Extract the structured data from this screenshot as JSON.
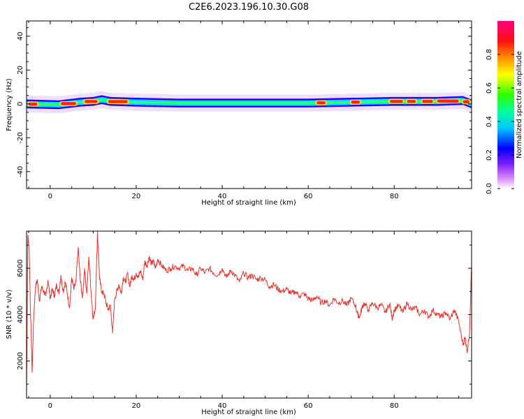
{
  "title": "C2E6.2023.196.10.30.G08",
  "chart_data": [
    {
      "type": "heatmap",
      "xlabel": "Height of straight line (km)",
      "ylabel": "Frequency (Hz)",
      "xlim": [
        -5.5,
        98
      ],
      "ylim": [
        -50,
        49
      ],
      "xticks": [
        0,
        20,
        40,
        60,
        80
      ],
      "xtick_labels": [
        "0",
        "20",
        "40",
        "60",
        "80"
      ],
      "yticks": [
        -40,
        -20,
        0,
        20,
        40
      ],
      "ytick_labels": [
        "-40",
        "-20",
        "0",
        "20",
        "40"
      ],
      "colorbar": {
        "label": "Normalized spectral amplitude",
        "range": [
          0,
          1
        ],
        "ticks": [
          0.0,
          0.2,
          0.4,
          0.6,
          0.8
        ],
        "tick_labels": [
          "0.0",
          "0.2",
          "0.4",
          "0.6",
          "0.8"
        ],
        "colormap": "hsv-reversed (magenta at 1, red, yellow, green, cyan, blue, violet, white at 0)"
      },
      "ridge_frequency_hz": [
        [
          -5.5,
          0
        ],
        [
          2,
          -0.5
        ],
        [
          7,
          1
        ],
        [
          10,
          1.5
        ],
        [
          12,
          2.5
        ],
        [
          14,
          1.5
        ],
        [
          20,
          1
        ],
        [
          30,
          0.5
        ],
        [
          40,
          0.5
        ],
        [
          50,
          0.5
        ],
        [
          60,
          0.5
        ],
        [
          70,
          1
        ],
        [
          80,
          1.5
        ],
        [
          90,
          1.5
        ],
        [
          96,
          2
        ],
        [
          98,
          0
        ]
      ],
      "ridge_peak_segments_km": [
        [
          -5,
          -3
        ],
        [
          2.5,
          6
        ],
        [
          8,
          11
        ],
        [
          13.5,
          18
        ],
        [
          62,
          64
        ],
        [
          70,
          72
        ],
        [
          79,
          82
        ],
        [
          83,
          85
        ],
        [
          86.5,
          89
        ],
        [
          90,
          95
        ],
        [
          96,
          97.5
        ]
      ],
      "grid": false
    },
    {
      "type": "line",
      "xlabel": "Height of straight line (km)",
      "ylabel": "SNR (10 * v/v)",
      "xlim": [
        -5.5,
        98
      ],
      "ylim": [
        400,
        7600
      ],
      "xticks": [
        0,
        20,
        40,
        60,
        80
      ],
      "xtick_labels": [
        "0",
        "20",
        "40",
        "60",
        "80"
      ],
      "yticks": [
        2000,
        4000,
        6000
      ],
      "ytick_labels": [
        "2000",
        "4000",
        "6000"
      ],
      "series": [
        {
          "color": "#e8302a",
          "points": [
            [
              -5.5,
              400
            ],
            [
              -5.2,
              7400
            ],
            [
              -4.9,
              6900
            ],
            [
              -4.6,
              4300
            ],
            [
              -4.2,
              1500
            ],
            [
              -3.8,
              4100
            ],
            [
              -3.4,
              5200
            ],
            [
              -3,
              5500
            ],
            [
              -2.5,
              4600
            ],
            [
              -2,
              5200
            ],
            [
              -1.5,
              5000
            ],
            [
              -1,
              4800
            ],
            [
              -0.5,
              5500
            ],
            [
              0,
              4700
            ],
            [
              0.5,
              5100
            ],
            [
              1,
              4800
            ],
            [
              1.5,
              5300
            ],
            [
              2,
              4900
            ],
            [
              2.5,
              5700
            ],
            [
              3,
              5000
            ],
            [
              3.5,
              5400
            ],
            [
              4,
              4900
            ],
            [
              4.5,
              4300
            ],
            [
              5,
              5600
            ],
            [
              5.5,
              5100
            ],
            [
              6,
              5400
            ],
            [
              6.5,
              6900
            ],
            [
              7,
              5500
            ],
            [
              7.5,
              4700
            ],
            [
              8,
              6000
            ],
            [
              8.5,
              4900
            ],
            [
              9,
              6500
            ],
            [
              9.5,
              5000
            ],
            [
              10,
              3800
            ],
            [
              10.5,
              4300
            ],
            [
              11,
              7600
            ],
            [
              11.5,
              5500
            ],
            [
              12,
              5000
            ],
            [
              12.5,
              4900
            ],
            [
              13,
              4500
            ],
            [
              13.5,
              4200
            ],
            [
              14,
              4400
            ],
            [
              14.5,
              3200
            ],
            [
              15,
              4700
            ],
            [
              15.5,
              5000
            ],
            [
              16,
              5300
            ],
            [
              16.5,
              4900
            ],
            [
              17,
              5600
            ],
            [
              17.5,
              5400
            ],
            [
              18,
              5800
            ],
            [
              18.5,
              5200
            ],
            [
              19,
              5700
            ],
            [
              19.5,
              5500
            ],
            [
              20,
              5800
            ],
            [
              20.5,
              5600
            ],
            [
              21,
              5900
            ],
            [
              21.5,
              5500
            ],
            [
              22,
              6300
            ],
            [
              22.5,
              6100
            ],
            [
              23,
              6500
            ],
            [
              23.5,
              6200
            ],
            [
              24,
              6300
            ],
            [
              24.5,
              6000
            ],
            [
              25,
              6400
            ],
            [
              26,
              6100
            ],
            [
              27,
              5900
            ],
            [
              28,
              6000
            ],
            [
              29,
              6100
            ],
            [
              30,
              6000
            ],
            [
              31,
              6100
            ],
            [
              32,
              5900
            ],
            [
              33,
              6000
            ],
            [
              34,
              5700
            ],
            [
              35,
              6000
            ],
            [
              36,
              5800
            ],
            [
              37,
              6000
            ],
            [
              38,
              5800
            ],
            [
              39,
              5700
            ],
            [
              40,
              6000
            ],
            [
              41,
              5600
            ],
            [
              42,
              5900
            ],
            [
              43,
              5700
            ],
            [
              44,
              5400
            ],
            [
              45,
              5800
            ],
            [
              46,
              5600
            ],
            [
              47,
              5700
            ],
            [
              48,
              5500
            ],
            [
              49,
              5600
            ],
            [
              50,
              5500
            ],
            [
              51,
              5200
            ],
            [
              52,
              5300
            ],
            [
              53,
              5100
            ],
            [
              54,
              5000
            ],
            [
              55,
              5100
            ],
            [
              56,
              4900
            ],
            [
              57,
              5000
            ],
            [
              58,
              4800
            ],
            [
              59,
              4900
            ],
            [
              60,
              4700
            ],
            [
              61,
              4600
            ],
            [
              62,
              4800
            ],
            [
              63,
              4500
            ],
            [
              64,
              4600
            ],
            [
              65,
              4400
            ],
            [
              66,
              4700
            ],
            [
              67,
              4500
            ],
            [
              68,
              4600
            ],
            [
              69,
              4400
            ],
            [
              70,
              4700
            ],
            [
              71,
              4400
            ],
            [
              71.5,
              4000
            ],
            [
              72,
              3900
            ],
            [
              72.5,
              4300
            ],
            [
              73,
              4500
            ],
            [
              74,
              4200
            ],
            [
              75,
              4500
            ],
            [
              76,
              4300
            ],
            [
              77,
              4400
            ],
            [
              78,
              4100
            ],
            [
              79,
              4500
            ],
            [
              79.5,
              3800
            ],
            [
              80,
              4200
            ],
            [
              81,
              4400
            ],
            [
              82,
              4100
            ],
            [
              83,
              4500
            ],
            [
              84,
              4200
            ],
            [
              85,
              4300
            ],
            [
              86,
              4000
            ],
            [
              87,
              4200
            ],
            [
              88,
              3900
            ],
            [
              89,
              4200
            ],
            [
              90,
              4000
            ],
            [
              91,
              3900
            ],
            [
              92,
              4100
            ],
            [
              93,
              3800
            ],
            [
              94,
              4200
            ],
            [
              95,
              3700
            ],
            [
              96,
              2700
            ],
            [
              96.5,
              3000
            ],
            [
              97,
              2400
            ],
            [
              97.5,
              3200
            ],
            [
              98,
              6200
            ]
          ]
        }
      ],
      "grid": false
    }
  ]
}
